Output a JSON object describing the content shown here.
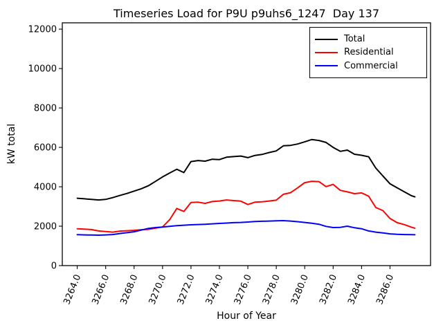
{
  "chart": {
    "title": "Timeseries Load for P9U p9uhs6_1247  Day 137",
    "xlabel": "Hour of Year",
    "ylabel": "kW total"
  },
  "legend": {
    "position": "upper right",
    "items": [
      {
        "label": "Total",
        "color": "#000000"
      },
      {
        "label": "Residential",
        "color": "#ff0000"
      },
      {
        "label": "Commercial",
        "color": "#0000ff"
      }
    ]
  },
  "chart_data": {
    "type": "line",
    "title": "Timeseries Load for P9U p9uhs6_1247  Day 137",
    "xlabel": "Hour of Year",
    "ylabel": "kW total",
    "grid": false,
    "legend_position": "upper right",
    "xlim": [
      3262.95,
      3288.85
    ],
    "ylim": [
      0,
      12320
    ],
    "xticks": [
      3264,
      3266,
      3268,
      3270,
      3272,
      3274,
      3276,
      3278,
      3280,
      3282,
      3284,
      3286
    ],
    "xtick_labels": [
      "3264.0",
      "3266.0",
      "3268.0",
      "3270.0",
      "3272.0",
      "3274.0",
      "3276.0",
      "3278.0",
      "3280.0",
      "3282.0",
      "3284.0",
      "3286.0"
    ],
    "yticks": [
      0,
      2000,
      4000,
      6000,
      8000,
      10000,
      12000
    ],
    "ytick_labels": [
      "0",
      "2000",
      "4000",
      "6000",
      "8000",
      "10000",
      "12000"
    ],
    "x": [
      3264,
      3264.5,
      3265,
      3265.5,
      3266,
      3266.5,
      3267,
      3267.5,
      3268,
      3268.5,
      3269,
      3269.5,
      3270,
      3270.5,
      3271,
      3271.5,
      3272,
      3272.5,
      3273,
      3273.5,
      3274,
      3274.5,
      3275,
      3275.5,
      3276,
      3276.5,
      3277,
      3277.5,
      3278,
      3278.5,
      3279,
      3279.5,
      3280,
      3280.5,
      3281,
      3281.5,
      3282,
      3282.5,
      3283,
      3283.5,
      3284,
      3284.5,
      3285,
      3285.5,
      3286,
      3286.5,
      3287,
      3287.5,
      3287.75
    ],
    "series": [
      {
        "name": "Total",
        "color": "#000000",
        "values": [
          3420,
          3390,
          3360,
          3330,
          3360,
          3450,
          3560,
          3660,
          3780,
          3900,
          4050,
          4270,
          4500,
          4700,
          4890,
          4720,
          5280,
          5330,
          5300,
          5400,
          5380,
          5500,
          5530,
          5560,
          5480,
          5590,
          5640,
          5740,
          5820,
          6080,
          6100,
          6170,
          6280,
          6400,
          6350,
          6250,
          6000,
          5800,
          5860,
          5650,
          5600,
          5520,
          4950,
          4550,
          4150,
          3950,
          3750,
          3550,
          3490
        ]
      },
      {
        "name": "Residential",
        "color": "#ff0000",
        "values": [
          1870,
          1850,
          1830,
          1760,
          1730,
          1700,
          1750,
          1770,
          1790,
          1820,
          1840,
          1900,
          1960,
          2330,
          2900,
          2750,
          3200,
          3220,
          3160,
          3250,
          3280,
          3330,
          3300,
          3270,
          3100,
          3220,
          3240,
          3280,
          3320,
          3620,
          3700,
          3940,
          4210,
          4280,
          4260,
          4010,
          4120,
          3820,
          3740,
          3650,
          3690,
          3520,
          2950,
          2790,
          2390,
          2180,
          2080,
          1950,
          1900
        ]
      },
      {
        "name": "Commercial",
        "color": "#0000ff",
        "values": [
          1570,
          1560,
          1550,
          1545,
          1560,
          1575,
          1630,
          1670,
          1715,
          1800,
          1890,
          1930,
          1960,
          1990,
          2030,
          2050,
          2070,
          2085,
          2100,
          2120,
          2140,
          2160,
          2180,
          2190,
          2210,
          2240,
          2250,
          2260,
          2275,
          2280,
          2260,
          2230,
          2190,
          2150,
          2100,
          1990,
          1930,
          1940,
          2000,
          1920,
          1870,
          1760,
          1700,
          1655,
          1610,
          1585,
          1575,
          1570,
          1565
        ]
      }
    ]
  }
}
